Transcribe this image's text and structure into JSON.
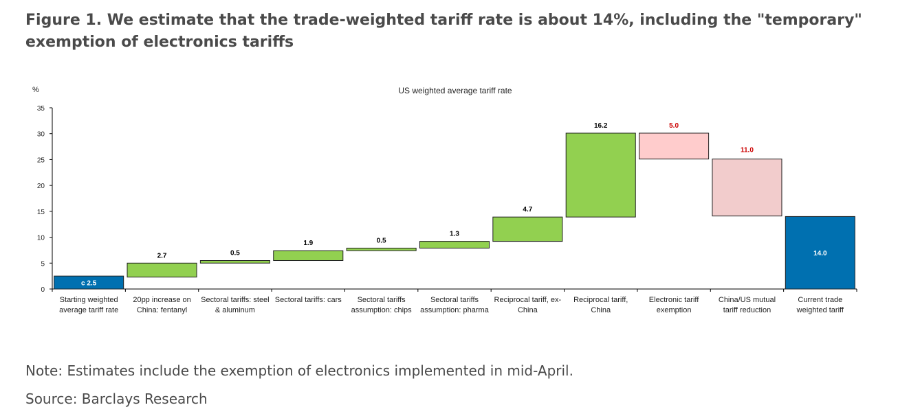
{
  "figure": {
    "title": "Figure 1. We estimate that the trade-weighted tariff rate is about 14%, including the \"temporary\" exemption of electronics tariffs",
    "note": "Note: Estimates include the exemption of electronics implemented in mid-April.",
    "source": "Source: Barclays Research"
  },
  "chart_data": {
    "type": "waterfall",
    "title": "US weighted average tariff rate",
    "ylabel": "%",
    "xlabel": "",
    "ylim": [
      0,
      35
    ],
    "yticks": [
      "0",
      "5",
      "10",
      "15",
      "20",
      "25",
      "30",
      "35"
    ],
    "grid": false,
    "colors": {
      "total": "#0070b0",
      "increase": "#92d050",
      "decrease_light": "#ffcccc",
      "decrease": "#f2cccc",
      "label_positive": "#000000",
      "label_negative": "#cc0000",
      "label_on_total": "#ffffff"
    },
    "bars": [
      {
        "category": [
          "Starting weighted",
          "average tariff rate"
        ],
        "kind": "total",
        "start": 0,
        "end": 2.5,
        "label": "c 2.5"
      },
      {
        "category": [
          "20pp increase on",
          "China: fentanyl"
        ],
        "kind": "increase",
        "start": 2.3,
        "end": 5.0,
        "label": "2.7"
      },
      {
        "category": [
          "Sectoral tariffs: steel",
          "& aluminum"
        ],
        "kind": "increase",
        "start": 5.0,
        "end": 5.5,
        "label": "0.5"
      },
      {
        "category": [
          "Sectoral tariffs: cars"
        ],
        "kind": "increase",
        "start": 5.5,
        "end": 7.4,
        "label": "1.9"
      },
      {
        "category": [
          "Sectoral tariffs",
          "assumption: chips"
        ],
        "kind": "increase",
        "start": 7.4,
        "end": 7.9,
        "label": "0.5"
      },
      {
        "category": [
          "Sectoral tariffs",
          "assumption: pharma"
        ],
        "kind": "increase",
        "start": 7.9,
        "end": 9.2,
        "label": "1.3"
      },
      {
        "category": [
          "Reciprocal tariff, ex-",
          "China"
        ],
        "kind": "increase",
        "start": 9.2,
        "end": 13.9,
        "label": "4.7"
      },
      {
        "category": [
          "Reciprocal tariff,",
          "China"
        ],
        "kind": "increase",
        "start": 13.9,
        "end": 30.1,
        "label": "16.2"
      },
      {
        "category": [
          "Electronic tariff",
          "exemption"
        ],
        "kind": "decrease_light",
        "start": 30.1,
        "end": 25.1,
        "label": "5.0"
      },
      {
        "category": [
          "China/US mutual",
          "tariff reduction"
        ],
        "kind": "decrease",
        "start": 25.1,
        "end": 14.1,
        "label": "11.0"
      },
      {
        "category": [
          "Current trade",
          "weighted tariff"
        ],
        "kind": "total",
        "start": 0,
        "end": 14.0,
        "label": "14.0"
      }
    ]
  }
}
